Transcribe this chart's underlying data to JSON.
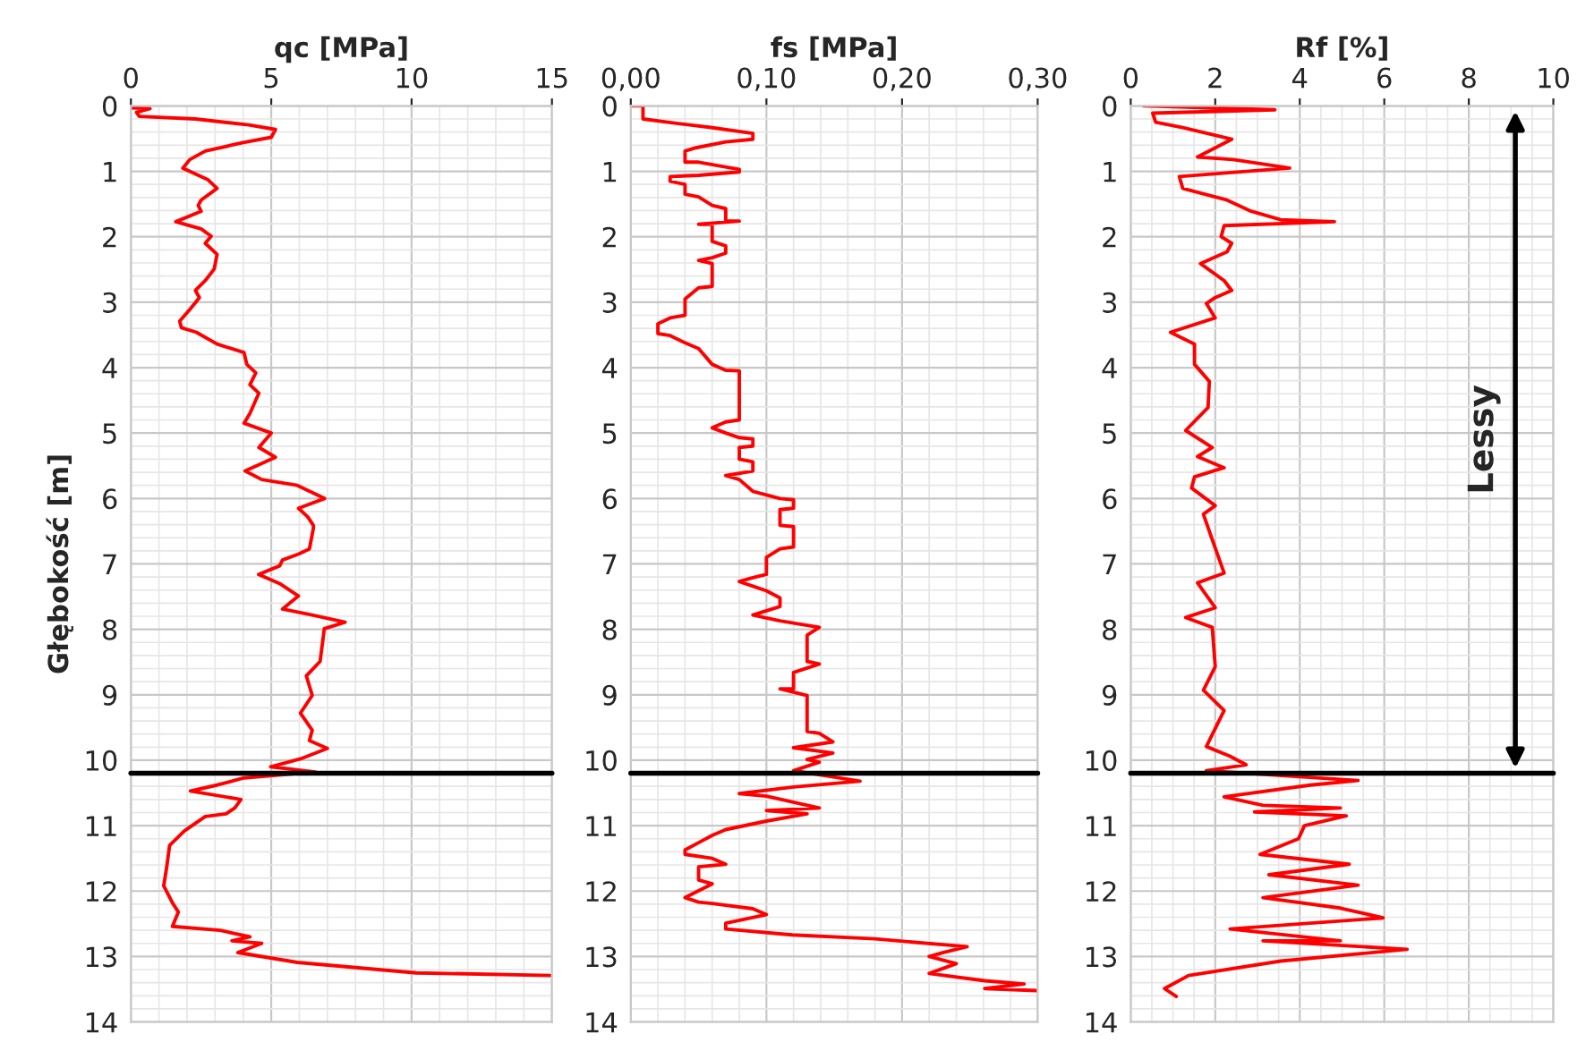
{
  "chart_data": [
    {
      "type": "line",
      "xlabel": "qc [MPa]",
      "ylabel": "Głębokość [m]",
      "xlim": [
        0,
        15
      ],
      "xticks": [
        0,
        5,
        10,
        15
      ],
      "ylim": [
        14,
        0
      ],
      "yticks": [
        0,
        1,
        2,
        3,
        4,
        5,
        6,
        7,
        8,
        9,
        10,
        11,
        12,
        13,
        14
      ],
      "grid": true,
      "ref_lines": [
        {
          "axis": "y",
          "value": 10.2,
          "color": "#000000"
        }
      ],
      "series": [
        {
          "color": "#ff0000",
          "x": [
            0,
            0.68,
            0.2,
            0.3,
            2.3,
            4.2,
            5.15,
            5.0,
            4.0,
            2.65,
            2.1,
            1.85,
            2.3,
            2.75,
            3.07,
            2.5,
            2.4,
            2.5,
            1.6,
            2.5,
            2.86,
            2.65,
            3.07,
            2.97,
            2.65,
            2.3,
            2.44,
            2.1,
            1.74,
            1.8,
            2.33,
            3.07,
            4.03,
            4.13,
            4.45,
            4.24,
            4.56,
            4.24,
            4.03,
            5.0,
            4.56,
            5.15,
            4.07,
            4.66,
            5.93,
            6.9,
            5.97,
            6.3,
            6.5,
            6.5,
            6.36,
            5.97,
            5.4,
            5.3,
            4.55,
            5.3,
            5.97,
            5.4,
            6.46,
            7.63,
            6.89,
            6.74,
            6.25,
            6.46,
            6.04,
            6.46,
            6.36,
            7.0,
            6.04,
            4.98,
            6.57,
            4.03,
            3.07,
            2.12,
            3.92,
            3.7,
            3.39,
            2.65,
            1.91,
            1.38,
            1.27,
            1.17,
            1.48,
            1.69,
            1.48,
            3.18,
            4.24,
            3.6,
            4.66,
            3.81,
            5.93,
            10.17,
            14.94
          ],
          "values": [
            0.03,
            0.04,
            0.1,
            0.16,
            0.2,
            0.29,
            0.36,
            0.48,
            0.56,
            0.69,
            0.82,
            0.95,
            1.04,
            1.13,
            1.26,
            1.44,
            1.52,
            1.61,
            1.77,
            1.88,
            1.99,
            2.1,
            2.27,
            2.49,
            2.67,
            2.82,
            2.93,
            3.11,
            3.29,
            3.39,
            3.46,
            3.64,
            3.77,
            3.95,
            4.08,
            4.26,
            4.39,
            4.7,
            4.85,
            5.0,
            5.22,
            5.37,
            5.58,
            5.71,
            5.8,
            6.0,
            6.15,
            6.28,
            6.41,
            6.46,
            6.77,
            6.85,
            6.94,
            7.03,
            7.16,
            7.3,
            7.49,
            7.69,
            7.78,
            7.89,
            7.99,
            8.49,
            8.71,
            9.01,
            9.28,
            9.54,
            9.7,
            9.82,
            9.98,
            10.1,
            10.18,
            10.27,
            10.38,
            10.47,
            10.6,
            10.73,
            10.82,
            10.86,
            11.08,
            11.3,
            11.65,
            11.92,
            12.18,
            12.32,
            12.54,
            12.6,
            12.7,
            12.76,
            12.8,
            12.94,
            13.09,
            13.25,
            13.29
          ]
        }
      ]
    },
    {
      "type": "line",
      "xlabel": "fs [MPa]",
      "xlim": [
        0,
        0.3
      ],
      "xticks": [
        {
          "value": 0,
          "label": "0,00"
        },
        {
          "value": 0.1,
          "label": "0,10"
        },
        {
          "value": 0.2,
          "label": "0,20"
        },
        {
          "value": 0.3,
          "label": "0,30"
        }
      ],
      "ylim": [
        14,
        0
      ],
      "yticks": [
        0,
        1,
        2,
        3,
        4,
        5,
        6,
        7,
        8,
        9,
        10,
        11,
        12,
        13,
        14
      ],
      "grid": true,
      "ref_lines": [
        {
          "axis": "y",
          "value": 10.2,
          "color": "#000000"
        }
      ],
      "series": [
        {
          "color": "#ff0000",
          "x": [
            0,
            0.009,
            0.009,
            0.031,
            0.059,
            0.09,
            0.09,
            0.07,
            0.048,
            0.04,
            0.04,
            0.05,
            0.08,
            0.08,
            0.05,
            0.029,
            0.029,
            0.04,
            0.04,
            0.05,
            0.06,
            0.07,
            0.07,
            0.08,
            0.05,
            0.06,
            0.06,
            0.07,
            0.07,
            0.06,
            0.05,
            0.06,
            0.06,
            0.05,
            0.04,
            0.04,
            0.029,
            0.02,
            0.02,
            0.029,
            0.04,
            0.05,
            0.06,
            0.07,
            0.08,
            0.08,
            0.07,
            0.06,
            0.07,
            0.08,
            0.09,
            0.09,
            0.08,
            0.08,
            0.09,
            0.09,
            0.07,
            0.08,
            0.09,
            0.11,
            0.12,
            0.12,
            0.11,
            0.11,
            0.12,
            0.12,
            0.11,
            0.1,
            0.1,
            0.09,
            0.08,
            0.09,
            0.1,
            0.11,
            0.11,
            0.09,
            0.11,
            0.139,
            0.13,
            0.13,
            0.139,
            0.12,
            0.12,
            0.11,
            0.13,
            0.13,
            0.139,
            0.149,
            0.12,
            0.149,
            0.13,
            0.139,
            0.12,
            0.169,
            0.12,
            0.08,
            0.1,
            0.139,
            0.1,
            0.13,
            0.1,
            0.07,
            0.06,
            0.05,
            0.04,
            0.04,
            0.06,
            0.07,
            0.05,
            0.05,
            0.06,
            0.04,
            0.05,
            0.06,
            0.09,
            0.1,
            0.07,
            0.07,
            0.119,
            0.18,
            0.248,
            0.23,
            0.22,
            0.24,
            0.22,
            0.261,
            0.29,
            0.261,
            0.299
          ],
          "values": [
            0,
            0,
            0.2,
            0.26,
            0.33,
            0.42,
            0.51,
            0.55,
            0.64,
            0.69,
            0.86,
            0.86,
            0.97,
            1.01,
            1.06,
            1.08,
            1.15,
            1.2,
            1.35,
            1.39,
            1.52,
            1.57,
            1.76,
            1.76,
            1.81,
            1.81,
            2.07,
            2.14,
            2.25,
            2.32,
            2.36,
            2.41,
            2.76,
            2.78,
            2.95,
            3.2,
            3.24,
            3.33,
            3.48,
            3.51,
            3.62,
            3.71,
            3.95,
            4.04,
            4.05,
            4.8,
            4.83,
            4.92,
            5.0,
            5.07,
            5.09,
            5.2,
            5.22,
            5.4,
            5.44,
            5.58,
            5.65,
            5.71,
            5.89,
            6.0,
            6.02,
            6.15,
            6.17,
            6.41,
            6.43,
            6.74,
            6.77,
            6.9,
            7.16,
            7.21,
            7.27,
            7.34,
            7.41,
            7.52,
            7.65,
            7.78,
            7.87,
            7.97,
            8.09,
            8.49,
            8.53,
            8.66,
            8.91,
            8.91,
            9.01,
            9.56,
            9.59,
            9.72,
            9.81,
            9.89,
            9.99,
            10.03,
            10.16,
            10.32,
            10.41,
            10.51,
            10.55,
            10.73,
            10.77,
            10.82,
            10.93,
            11.06,
            11.15,
            11.26,
            11.37,
            11.44,
            11.5,
            11.59,
            11.63,
            11.83,
            11.89,
            12.1,
            12.17,
            12.19,
            12.27,
            12.36,
            12.49,
            12.58,
            12.67,
            12.73,
            12.85,
            12.94,
            13.0,
            13.11,
            13.26,
            13.37,
            13.42,
            13.49,
            13.52
          ]
        }
      ]
    },
    {
      "type": "line",
      "xlabel": "Rf [%]",
      "xlim": [
        0,
        10
      ],
      "xticks": [
        0,
        2,
        4,
        6,
        8,
        10
      ],
      "ylim": [
        14,
        0
      ],
      "yticks": [
        0,
        1,
        2,
        3,
        4,
        5,
        6,
        7,
        8,
        9,
        10,
        11,
        12,
        13,
        14
      ],
      "grid": true,
      "ref_lines": [
        {
          "axis": "y",
          "value": 10.2,
          "color": "#000000"
        }
      ],
      "annotations": [
        "Lessy"
      ],
      "series": [
        {
          "color": "#ff0000",
          "x": [
            0.31,
            3.41,
            0.52,
            0.59,
            1.23,
            2.39,
            1.58,
            2.42,
            3.76,
            1.15,
            1.23,
            2.28,
            2.85,
            3.55,
            4.82,
            2.21,
            2.14,
            2.39,
            2.28,
            1.65,
            2.21,
            2.39,
            2.0,
            1.79,
            2.0,
            0.94,
            1.51,
            1.51,
            1.86,
            1.83,
            1.3,
            1.93,
            1.58,
            2.21,
            1.51,
            1.44,
            2.0,
            1.72,
            1.93,
            2.21,
            1.58,
            2.0,
            1.3,
            1.93,
            2.0,
            1.72,
            2.21,
            1.79,
            2.35,
            2.73,
            1.79,
            5.38,
            4.25,
            2.21,
            3.13,
            4.96,
            2.93,
            5.1,
            4.11,
            3.97,
            3.06,
            5.17,
            3.27,
            5.38,
            3.13,
            4.96,
            5.97,
            2.35,
            4.96,
            3.13,
            6.54,
            3.55,
            1.37,
            0.8,
            1.08
          ],
          "values": [
            0,
            0.06,
            0.11,
            0.25,
            0.33,
            0.51,
            0.78,
            0.82,
            0.95,
            1.08,
            1.26,
            1.44,
            1.61,
            1.74,
            1.77,
            1.83,
            2.0,
            2.1,
            2.23,
            2.41,
            2.67,
            2.82,
            2.93,
            3.02,
            3.24,
            3.46,
            3.64,
            3.95,
            4.21,
            4.61,
            4.96,
            5.22,
            5.36,
            5.53,
            5.67,
            5.84,
            6.11,
            6.24,
            6.63,
            7.14,
            7.29,
            7.67,
            7.82,
            7.97,
            8.57,
            8.93,
            9.24,
            9.79,
            9.94,
            10.07,
            10.16,
            10.31,
            10.38,
            10.56,
            10.69,
            10.73,
            10.79,
            10.85,
            11.0,
            11.2,
            11.44,
            11.59,
            11.75,
            11.91,
            12.1,
            12.26,
            12.41,
            12.58,
            12.76,
            12.76,
            12.89,
            13.07,
            13.29,
            13.49,
            13.61
          ]
        }
      ]
    }
  ]
}
